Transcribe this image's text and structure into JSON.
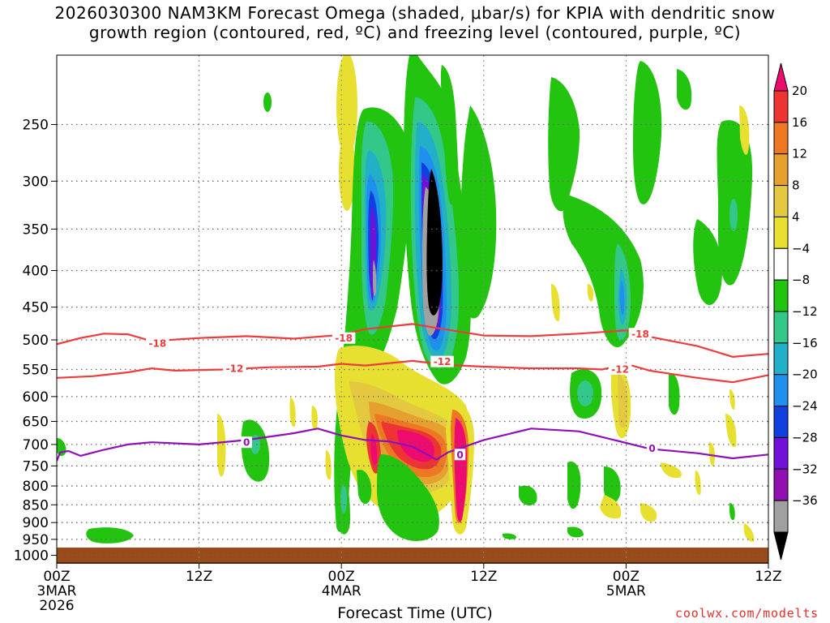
{
  "title": {
    "line1": "2026030300 NAM3KM Forecast Omega (shaded, μbar/s) for KPIA with dendritic snow",
    "line2": "growth region (contoured, red, ºC) and freezing level (contoured, purple, ºC)"
  },
  "credit": "coolwx.com/modelts",
  "chart_data": {
    "type": "time-height cross-section",
    "xlabel": "Forecast Time (UTC)",
    "x_ticks": [
      {
        "hour": 0,
        "lines": [
          "00Z",
          "3MAR",
          "2026"
        ]
      },
      {
        "hour": 12,
        "lines": [
          "12Z"
        ]
      },
      {
        "hour": 24,
        "lines": [
          "00Z",
          "4MAR"
        ]
      },
      {
        "hour": 36,
        "lines": [
          "12Z"
        ]
      },
      {
        "hour": 48,
        "lines": [
          "00Z",
          "5MAR"
        ]
      },
      {
        "hour": 60,
        "lines": [
          "12Z"
        ]
      }
    ],
    "xlim_hours": [
      0,
      60
    ],
    "ylabel": "",
    "y_ticks": [
      250,
      300,
      350,
      400,
      450,
      500,
      550,
      600,
      650,
      700,
      750,
      800,
      850,
      900,
      950,
      1000
    ],
    "ylim_mb": [
      200,
      1025
    ],
    "grid": true,
    "colorbar": {
      "labels": [
        "20",
        "16",
        "12",
        "8",
        "4",
        "−4",
        "−8",
        "−12",
        "−16",
        "−20",
        "−24",
        "−28",
        "−32",
        "−36"
      ],
      "colors": [
        "#ee0b70",
        "#ee3333",
        "#ee7722",
        "#e6a030",
        "#e3c840",
        "#e8e030",
        "#ffffff",
        "#22c410",
        "#33c88a",
        "#22b0c8",
        "#2090ee",
        "#1040e0",
        "#7010d8",
        "#9010b0",
        "#a0a0a0",
        "#000000"
      ]
    },
    "contours": {
      "dgz_minus12": {
        "label": "-12",
        "color": "#ee3b3b",
        "points": [
          [
            0,
            565
          ],
          [
            3,
            562
          ],
          [
            6,
            555
          ],
          [
            8,
            548
          ],
          [
            10,
            552
          ],
          [
            14,
            550
          ],
          [
            18,
            546
          ],
          [
            22,
            545
          ],
          [
            24,
            540
          ],
          [
            26,
            543
          ],
          [
            30,
            535
          ],
          [
            33,
            542
          ],
          [
            36,
            545
          ],
          [
            40,
            548
          ],
          [
            44,
            548
          ],
          [
            46,
            550
          ],
          [
            48,
            540
          ],
          [
            50,
            552
          ],
          [
            54,
            565
          ],
          [
            57,
            573
          ],
          [
            60,
            560
          ]
        ]
      },
      "dgz_minus18": {
        "label": "-18",
        "color": "#ee3b3b",
        "points": [
          [
            0,
            507
          ],
          [
            2,
            497
          ],
          [
            4,
            490
          ],
          [
            6,
            491
          ],
          [
            8,
            502
          ],
          [
            12,
            497
          ],
          [
            16,
            494
          ],
          [
            20,
            498
          ],
          [
            24,
            492
          ],
          [
            26,
            483
          ],
          [
            30,
            475
          ],
          [
            34,
            487
          ],
          [
            36,
            493
          ],
          [
            40,
            494
          ],
          [
            44,
            490
          ],
          [
            48,
            485
          ],
          [
            50,
            495
          ],
          [
            54,
            510
          ],
          [
            57,
            528
          ],
          [
            60,
            523
          ]
        ]
      },
      "freezing_0": {
        "label": "0",
        "color": "#9010b8",
        "points": [
          [
            0,
            738
          ],
          [
            0.3,
            718
          ],
          [
            1,
            715
          ],
          [
            2,
            726
          ],
          [
            4,
            712
          ],
          [
            6,
            700
          ],
          [
            8,
            695
          ],
          [
            12,
            700
          ],
          [
            16,
            690
          ],
          [
            20,
            675
          ],
          [
            22,
            665
          ],
          [
            24,
            680
          ],
          [
            26,
            690
          ],
          [
            28,
            693
          ],
          [
            30,
            705
          ],
          [
            32,
            735
          ],
          [
            33,
            718
          ],
          [
            36,
            690
          ],
          [
            40,
            665
          ],
          [
            44,
            671
          ],
          [
            47,
            690
          ],
          [
            50,
            710
          ],
          [
            54,
            720
          ],
          [
            57,
            732
          ],
          [
            60,
            723
          ]
        ]
      }
    },
    "shaded_features": [
      {
        "kind": "rising",
        "value": "-36 (black core)",
        "hour": 32.5,
        "pressure_mb": 380
      },
      {
        "kind": "rising",
        "value": "-28 to -32",
        "hour": 27.5,
        "pressure_mb": 380
      },
      {
        "kind": "sinking",
        "value": "20 (magenta)",
        "hour": 31,
        "pressure_mb": 700
      },
      {
        "kind": "sinking",
        "value": "20 (magenta)",
        "hour": 35,
        "pressure_mb": 780
      },
      {
        "kind": "surface",
        "label": "below ground",
        "color": "#994c1a"
      }
    ]
  }
}
